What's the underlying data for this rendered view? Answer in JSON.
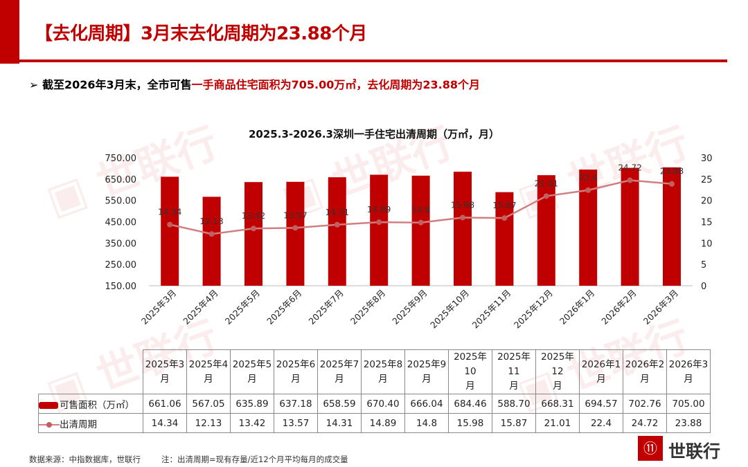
{
  "header": {
    "title": "【去化周期】3月末去化周期为23.88个月",
    "subtitle_prefix": "截至2026年3月末，全市可售",
    "subtitle_red": "一手商品住宅面积为705.00万㎡，去化周期为23.88个月"
  },
  "chart_data": {
    "type": "bar+line",
    "title": "2025.3-2026.3深圳一手住宅出清周期（万㎡，月）",
    "categories": [
      "2025年3月",
      "2025年4月",
      "2025年5月",
      "2025年6月",
      "2025年7月",
      "2025年8月",
      "2025年9月",
      "2025年10月",
      "2025年11月",
      "2025年12月",
      "2026年1月",
      "2026年2月",
      "2026年3月"
    ],
    "series": [
      {
        "name": "可售面积（万㎡）",
        "type": "bar",
        "axis": "left",
        "color": "#c00000",
        "values": [
          661.06,
          567.05,
          635.89,
          637.18,
          658.59,
          670.4,
          666.04,
          684.46,
          588.7,
          668.31,
          694.57,
          702.76,
          705.0
        ]
      },
      {
        "name": "出清周期",
        "type": "line",
        "axis": "right",
        "color": "#d08080",
        "values": [
          14.34,
          12.13,
          13.42,
          13.57,
          14.31,
          14.89,
          14.8,
          15.98,
          15.87,
          21.01,
          22.4,
          24.72,
          23.88
        ],
        "labels": [
          "14.34",
          "12.13",
          "13.42",
          "13.57",
          "14.31",
          "14.89",
          "14.8",
          "15.98",
          "15.87",
          "21.01",
          "22.4",
          "24.72",
          "23.88"
        ]
      }
    ],
    "left_axis": {
      "ylim": [
        150,
        750
      ],
      "ticks": [
        "150.00",
        "250.00",
        "350.00",
        "450.00",
        "550.00",
        "650.00",
        "750.00"
      ]
    },
    "right_axis": {
      "ylim": [
        0,
        30
      ],
      "ticks": [
        "0",
        "5",
        "10",
        "15",
        "20",
        "25",
        "30"
      ]
    },
    "grid": false,
    "legend": "table-below"
  },
  "table": {
    "header_cells": [
      [
        "2025年3",
        "月"
      ],
      [
        "2025年4",
        "月"
      ],
      [
        "2025年5",
        "月"
      ],
      [
        "2025年6",
        "月"
      ],
      [
        "2025年7",
        "月"
      ],
      [
        "2025年8",
        "月"
      ],
      [
        "2025年9",
        "月"
      ],
      [
        "2025年10",
        "月"
      ],
      [
        "2025年11",
        "月"
      ],
      [
        "2025年12",
        "月"
      ],
      [
        "2026年1",
        "月"
      ],
      [
        "2026年2",
        "月"
      ],
      [
        "2026年3",
        "月"
      ]
    ],
    "row_area_label": "可售面积（万㎡）",
    "row_area": [
      "661.06",
      "567.05",
      "635.89",
      "637.18",
      "658.59",
      "670.40",
      "666.04",
      "684.46",
      "588.70",
      "668.31",
      "694.57",
      "702.76",
      "705.00"
    ],
    "row_cycle_label": "出清周期",
    "row_cycle": [
      "14.34",
      "12.13",
      "13.42",
      "13.57",
      "14.31",
      "14.89",
      "14.8",
      "15.98",
      "15.87",
      "21.01",
      "22.4",
      "24.72",
      "23.88"
    ]
  },
  "footer": {
    "source": "数据来源：中指数据库，世联行",
    "note": "注：出清周期=现有存量/近12个月平均每月的成交量"
  },
  "logo": {
    "text": "世联行"
  }
}
